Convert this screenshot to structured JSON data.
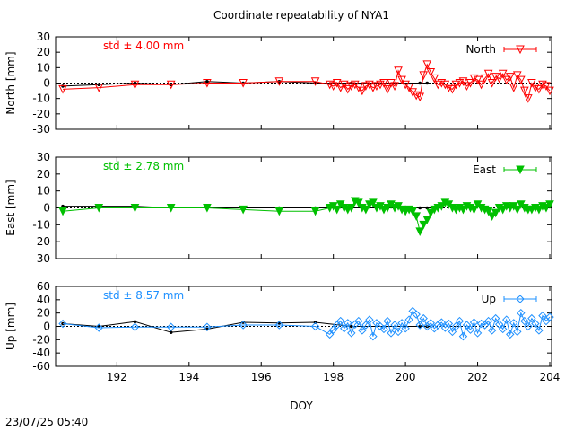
{
  "title": "Coordinate repeatability of NYA1",
  "footer_timestamp": "23/07/25 05:40",
  "chart_data": {
    "type": "scatter",
    "xlabel": "DOY",
    "xlim": [
      190.3,
      204.05
    ],
    "xticks": [
      192,
      194,
      196,
      198,
      200,
      202,
      204
    ],
    "panels": [
      {
        "id": "north",
        "ylabel": "North [mm]",
        "ylim": [
          -30,
          30
        ],
        "yticks": [
          -30,
          -20,
          -10,
          0,
          10,
          20,
          30
        ],
        "std_label": "std ± 4.00 mm",
        "legend": "North",
        "color": "#ff0000",
        "marker": "triangle-down-open",
        "black_x": [
          190.5,
          191.5,
          192.5,
          193.5,
          194.5,
          195.5,
          196.5,
          197.5,
          198.5,
          200.4,
          200.6
        ],
        "black_y": [
          -2,
          -1,
          0,
          -1,
          1,
          0,
          1,
          0,
          0,
          0,
          0
        ],
        "x": [
          190.5,
          191.5,
          192.5,
          193.5,
          194.5,
          195.5,
          196.5,
          197.5,
          197.9,
          198.0,
          198.1,
          198.2,
          198.3,
          198.4,
          198.5,
          198.6,
          198.7,
          198.8,
          198.9,
          199.0,
          199.1,
          199.2,
          199.3,
          199.4,
          199.5,
          199.6,
          199.7,
          199.8,
          199.9,
          200.0,
          200.1,
          200.2,
          200.3,
          200.4,
          200.5,
          200.6,
          200.7,
          200.8,
          200.9,
          201.0,
          201.1,
          201.2,
          201.3,
          201.4,
          201.5,
          201.6,
          201.7,
          201.8,
          201.9,
          202.0,
          202.1,
          202.2,
          202.3,
          202.4,
          202.5,
          202.6,
          202.7,
          202.8,
          202.9,
          203.0,
          203.1,
          203.2,
          203.3,
          203.4,
          203.5,
          203.6,
          203.7,
          203.8,
          203.9,
          204.0
        ],
        "y": [
          -4,
          -3,
          -1,
          -1,
          0,
          0,
          1,
          1,
          -1,
          -2,
          0,
          -3,
          -1,
          -4,
          -2,
          -1,
          -3,
          -5,
          -2,
          -1,
          -3,
          -2,
          -1,
          0,
          -4,
          0,
          -2,
          8,
          2,
          -1,
          -3,
          -6,
          -8,
          -9,
          5,
          12,
          7,
          3,
          -1,
          0,
          -1,
          -3,
          -4,
          -1,
          0,
          1,
          -2,
          0,
          3,
          2,
          -1,
          3,
          6,
          0,
          4,
          3,
          6,
          2,
          4,
          -3,
          5,
          2,
          -5,
          -10,
          0,
          -3,
          -4,
          -1,
          -2,
          -5
        ]
      },
      {
        "id": "east",
        "ylabel": "East [mm]",
        "ylim": [
          -30,
          30
        ],
        "yticks": [
          -30,
          -20,
          -10,
          0,
          10,
          20,
          30
        ],
        "std_label": "std ± 2.78 mm",
        "legend": "East",
        "color": "#00c000",
        "marker": "triangle-down-filled",
        "black_x": [
          190.5,
          191.5,
          192.5,
          193.5,
          194.5,
          195.5,
          196.5,
          197.5,
          198.5,
          200.4,
          200.6
        ],
        "black_y": [
          1,
          1,
          1,
          0,
          0,
          0,
          0,
          0,
          0,
          0,
          0
        ],
        "x": [
          190.5,
          191.5,
          192.5,
          193.5,
          194.5,
          195.5,
          196.5,
          197.5,
          197.9,
          198.0,
          198.1,
          198.2,
          198.3,
          198.4,
          198.5,
          198.6,
          198.7,
          198.8,
          198.9,
          199.0,
          199.1,
          199.2,
          199.3,
          199.4,
          199.5,
          199.6,
          199.7,
          199.8,
          199.9,
          200.0,
          200.1,
          200.2,
          200.3,
          200.4,
          200.5,
          200.6,
          200.7,
          200.8,
          200.9,
          201.0,
          201.1,
          201.2,
          201.3,
          201.4,
          201.5,
          201.6,
          201.7,
          201.8,
          201.9,
          202.0,
          202.1,
          202.2,
          202.3,
          202.4,
          202.5,
          202.6,
          202.7,
          202.8,
          202.9,
          203.0,
          203.1,
          203.2,
          203.3,
          203.4,
          203.5,
          203.6,
          203.7,
          203.8,
          203.9,
          204.0
        ],
        "y": [
          -2,
          0,
          0,
          0,
          0,
          -1,
          -2,
          -2,
          0,
          1,
          -1,
          2,
          0,
          -1,
          0,
          4,
          3,
          0,
          -1,
          2,
          3,
          0,
          1,
          -1,
          0,
          2,
          0,
          1,
          -1,
          -2,
          -1,
          -2,
          -5,
          -14,
          -10,
          -7,
          -3,
          -1,
          0,
          1,
          3,
          2,
          0,
          -1,
          0,
          -1,
          1,
          0,
          -1,
          2,
          0,
          -1,
          -2,
          -5,
          -3,
          0,
          -1,
          1,
          0,
          1,
          -1,
          2,
          0,
          -1,
          -1,
          0,
          -1,
          1,
          0,
          2
        ]
      },
      {
        "id": "up",
        "ylabel": "Up [mm]",
        "ylim": [
          -60,
          60
        ],
        "yticks": [
          -60,
          -40,
          -20,
          0,
          20,
          40,
          60
        ],
        "std_label": "std ± 8.57 mm",
        "legend": "Up",
        "color": "#1e90ff",
        "marker": "diamond-open",
        "black_x": [
          190.5,
          191.5,
          192.5,
          193.5,
          194.5,
          195.5,
          196.5,
          197.5,
          198.5,
          200.4,
          200.6
        ],
        "black_y": [
          4,
          0,
          7,
          -9,
          -4,
          6,
          5,
          6,
          0,
          0,
          0
        ],
        "x": [
          190.5,
          191.5,
          192.5,
          193.5,
          194.5,
          195.5,
          196.5,
          197.5,
          197.9,
          198.0,
          198.1,
          198.2,
          198.3,
          198.4,
          198.5,
          198.6,
          198.7,
          198.8,
          198.9,
          199.0,
          199.1,
          199.2,
          199.3,
          199.4,
          199.5,
          199.6,
          199.7,
          199.8,
          199.9,
          200.0,
          200.1,
          200.2,
          200.3,
          200.4,
          200.5,
          200.6,
          200.7,
          200.8,
          200.9,
          201.0,
          201.1,
          201.2,
          201.3,
          201.4,
          201.5,
          201.6,
          201.7,
          201.8,
          201.9,
          202.0,
          202.1,
          202.2,
          202.3,
          202.4,
          202.5,
          202.6,
          202.7,
          202.8,
          202.9,
          203.0,
          203.1,
          203.2,
          203.3,
          203.4,
          203.5,
          203.6,
          203.7,
          203.8,
          203.9,
          204.0
        ],
        "y": [
          4,
          -2,
          -1,
          -1,
          -1,
          2,
          2,
          0,
          -12,
          -5,
          2,
          8,
          -3,
          5,
          -10,
          3,
          8,
          -6,
          2,
          10,
          -15,
          5,
          0,
          -4,
          8,
          -10,
          2,
          -8,
          5,
          -3,
          10,
          23,
          18,
          2,
          12,
          0,
          5,
          -3,
          2,
          6,
          -2,
          4,
          -8,
          0,
          8,
          -15,
          2,
          -5,
          6,
          -10,
          4,
          2,
          8,
          -6,
          12,
          3,
          -4,
          10,
          -12,
          5,
          -8,
          20,
          8,
          0,
          12,
          4,
          -6,
          16,
          8,
          14
        ]
      }
    ]
  }
}
